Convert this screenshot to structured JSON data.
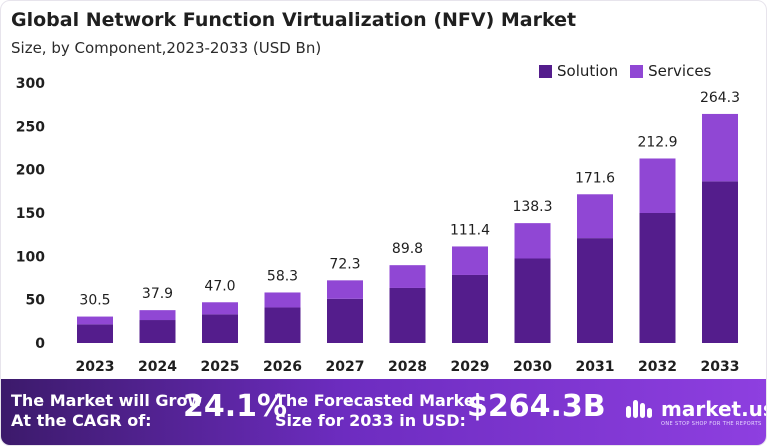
{
  "header": {
    "title": "Global Network Function Virtualization (NFV) Market",
    "subtitle": "Size, by Component,2023-2033 (USD Bn)"
  },
  "colors": {
    "solution": "#541d8c",
    "services": "#9047d4"
  },
  "chart_data": {
    "type": "bar",
    "stacked": true,
    "categories": [
      "2023",
      "2024",
      "2025",
      "2026",
      "2027",
      "2028",
      "2029",
      "2030",
      "2031",
      "2032",
      "2033"
    ],
    "series": [
      {
        "name": "Solution",
        "values": [
          21.5,
          26.5,
          33.0,
          41.0,
          51.0,
          63.5,
          78.5,
          97.5,
          121.0,
          150.0,
          186.5
        ]
      },
      {
        "name": "Services",
        "values": [
          9.0,
          11.4,
          14.0,
          17.3,
          21.3,
          26.3,
          32.9,
          40.8,
          50.6,
          62.9,
          77.8
        ]
      }
    ],
    "totals": [
      "30.5",
      "37.9",
      "47.0",
      "58.3",
      "72.3",
      "89.8",
      "111.4",
      "138.3",
      "171.6",
      "212.9",
      "264.3"
    ],
    "ylim": [
      0,
      300
    ],
    "yticks": [
      0,
      50,
      100,
      150,
      200,
      250,
      300
    ],
    "grid": false,
    "legend_position": "top-right"
  },
  "legend": {
    "solution": "Solution",
    "services": "Services"
  },
  "footer": {
    "cagr_line1": "The Market will Grow",
    "cagr_line2": "At the CAGR of:",
    "cagr_value": "24.1%",
    "forecast_line1": "The Forecasted Market",
    "forecast_line2": "Size for 2033 in USD:",
    "forecast_value": "$264.3B",
    "brand": "market.us",
    "brand_tagline": "ONE STOP SHOP FOR THE REPORTS"
  }
}
